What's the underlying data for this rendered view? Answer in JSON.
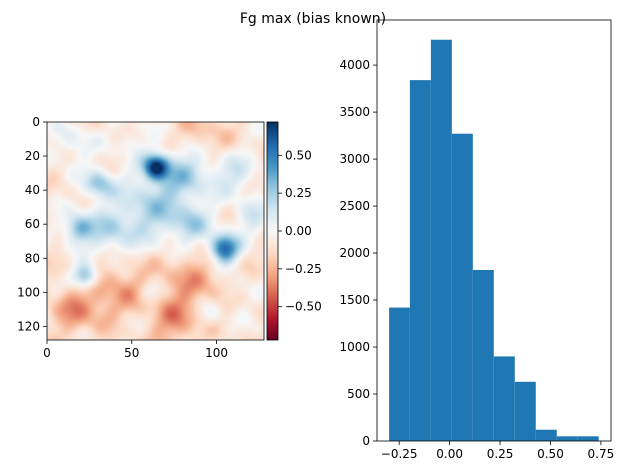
{
  "title": "Fg max (bias known)",
  "chart_data": [
    {
      "type": "heatmap",
      "xlim": [
        0,
        128
      ],
      "ylim": [
        128,
        0
      ],
      "xticks": [
        0,
        50,
        100
      ],
      "yticks": [
        0,
        20,
        40,
        60,
        80,
        100,
        120
      ],
      "colormap": "RdBu",
      "colorbar": {
        "vmin": -0.72,
        "vmax": 0.72,
        "ticks": [
          0.5,
          0.25,
          0.0,
          -0.25,
          -0.5
        ],
        "tick_labels": [
          "0.50",
          "0.25",
          "0.00",
          "−0.25",
          "−0.50"
        ]
      },
      "blobs": [
        {
          "x": 64,
          "y": 26,
          "v": 0.75,
          "r": 5
        },
        {
          "x": 104,
          "y": 74,
          "v": 0.7,
          "r": 6
        },
        {
          "x": 82,
          "y": 28,
          "v": 0.3,
          "r": 11
        },
        {
          "x": 62,
          "y": 50,
          "v": 0.3,
          "r": 15
        },
        {
          "x": 30,
          "y": 36,
          "v": 0.35,
          "r": 6
        },
        {
          "x": 18,
          "y": 62,
          "v": 0.4,
          "r": 6
        },
        {
          "x": 36,
          "y": 65,
          "v": 0.25,
          "r": 10
        },
        {
          "x": 22,
          "y": 90,
          "v": 0.5,
          "r": 5
        },
        {
          "x": 85,
          "y": 60,
          "v": 0.25,
          "r": 8
        },
        {
          "x": 110,
          "y": 30,
          "v": 0.2,
          "r": 9
        },
        {
          "x": 15,
          "y": 12,
          "v": 0.15,
          "r": 8
        },
        {
          "x": 50,
          "y": 10,
          "v": 0.1,
          "r": 7
        },
        {
          "x": 60,
          "y": 100,
          "v": 0.15,
          "r": 5
        },
        {
          "x": 45,
          "y": 118,
          "v": 0.1,
          "r": 5
        },
        {
          "x": 95,
          "y": 112,
          "v": 0.15,
          "r": 6
        },
        {
          "x": 120,
          "y": 55,
          "v": 0.2,
          "r": 7
        },
        {
          "x": 110,
          "y": 100,
          "v": 0.1,
          "r": 6
        },
        {
          "x": 85,
          "y": 95,
          "v": -0.2,
          "r": 15
        },
        {
          "x": 40,
          "y": 100,
          "v": -0.2,
          "r": 15
        },
        {
          "x": 90,
          "y": 10,
          "v": -0.15,
          "r": 12
        },
        {
          "x": 15,
          "y": 110,
          "v": -0.2,
          "r": 10
        },
        {
          "x": 75,
          "y": 118,
          "v": -0.2,
          "r": 9
        }
      ],
      "baseline_value": -0.08
    },
    {
      "type": "bar",
      "bin_edges": [
        -0.3,
        -0.197,
        -0.093,
        0.011,
        0.115,
        0.219,
        0.323,
        0.427,
        0.531,
        0.635,
        0.739
      ],
      "values": [
        1420,
        3840,
        4270,
        3270,
        1820,
        900,
        630,
        120,
        50,
        50
      ],
      "color": "#1f77b4",
      "xlim": [
        -0.36,
        0.8
      ],
      "ylim": [
        0,
        4480
      ],
      "xticks": [
        -0.25,
        0.0,
        0.25,
        0.5,
        0.75
      ],
      "xtick_labels": [
        "−0.25",
        "0.00",
        "0.25",
        "0.50",
        "0.75"
      ],
      "yticks": [
        0,
        500,
        1000,
        1500,
        2000,
        2500,
        3000,
        3500,
        4000
      ]
    }
  ]
}
